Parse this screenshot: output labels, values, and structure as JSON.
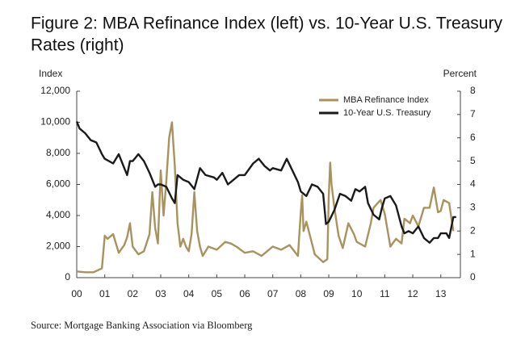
{
  "chart_data": {
    "type": "line",
    "title": [
      "Figure 2: MBA Refinance Index (left) vs. 10-Year U.S. Treasury",
      "Rates (right)"
    ],
    "ylabel": "Index",
    "y2label": "Percent",
    "source": "Source:  Mortgage Banking Association via Bloomberg",
    "xlim": [
      0,
      13.7
    ],
    "xticks": [
      {
        "value": 0,
        "label": "00"
      },
      {
        "value": 1,
        "label": "01"
      },
      {
        "value": 2,
        "label": "02"
      },
      {
        "value": 3,
        "label": "03"
      },
      {
        "value": 4,
        "label": "04"
      },
      {
        "value": 5,
        "label": "05"
      },
      {
        "value": 6,
        "label": "06"
      },
      {
        "value": 7,
        "label": "07"
      },
      {
        "value": 8,
        "label": "08"
      },
      {
        "value": 9,
        "label": "09"
      },
      {
        "value": 10,
        "label": "10"
      },
      {
        "value": 11,
        "label": "11"
      },
      {
        "value": 12,
        "label": "12"
      },
      {
        "value": 13,
        "label": "13"
      }
    ],
    "ylim": [
      0,
      12000
    ],
    "yticks": [
      0,
      {
        "value": 2000,
        "label": "2,000"
      },
      {
        "value": 4000,
        "label": "4,000"
      },
      {
        "value": 6000,
        "label": "6,000"
      },
      {
        "value": 8000,
        "label": "8,000"
      },
      {
        "value": 10000,
        "label": "10,000"
      },
      {
        "value": 12000,
        "label": "12,000"
      }
    ],
    "y2lim": [
      0,
      8
    ],
    "y2ticks": [
      0,
      1,
      2,
      3,
      4,
      5,
      6,
      7,
      8
    ],
    "legend": "top-right",
    "series": [
      {
        "name": "MBA Refinance Index",
        "color": "#a8935f",
        "x": [
          0.0,
          0.3,
          0.6,
          0.9,
          1.0,
          1.1,
          1.3,
          1.5,
          1.7,
          1.8,
          1.9,
          2.0,
          2.2,
          2.4,
          2.6,
          2.7,
          2.8,
          2.9,
          3.0,
          3.1,
          3.2,
          3.3,
          3.4,
          3.5,
          3.6,
          3.7,
          3.8,
          3.9,
          4.0,
          4.1,
          4.2,
          4.3,
          4.4,
          4.5,
          4.7,
          5.0,
          5.3,
          5.5,
          5.7,
          6.0,
          6.3,
          6.6,
          7.0,
          7.3,
          7.6,
          7.9,
          8.0,
          8.05,
          8.1,
          8.2,
          8.5,
          8.8,
          8.95,
          9.0,
          9.05,
          9.1,
          9.2,
          9.35,
          9.5,
          9.7,
          9.9,
          10.0,
          10.3,
          10.5,
          10.6,
          10.75,
          10.85,
          11.0,
          11.2,
          11.4,
          11.6,
          11.7,
          11.9,
          12.0,
          12.2,
          12.4,
          12.6,
          12.75,
          12.9,
          13.0,
          13.1,
          13.3,
          13.45
        ],
        "values": [
          400,
          350,
          350,
          600,
          2700,
          2500,
          2800,
          1600,
          2100,
          2600,
          3500,
          2000,
          1500,
          1700,
          2800,
          5500,
          3200,
          2200,
          6900,
          4000,
          6200,
          9000,
          10000,
          7200,
          3500,
          2000,
          2500,
          2000,
          1700,
          2800,
          5500,
          3000,
          2000,
          1400,
          2000,
          1800,
          2300,
          2200,
          2000,
          1600,
          1700,
          1400,
          2000,
          1800,
          2100,
          1400,
          4200,
          5300,
          3000,
          3600,
          1500,
          1000,
          1200,
          5200,
          7400,
          6000,
          4500,
          2700,
          1900,
          3500,
          2800,
          2300,
          2000,
          3500,
          4500,
          4800,
          5000,
          4100,
          2000,
          2500,
          2200,
          3800,
          3500,
          4000,
          3300,
          4500,
          4500,
          5800,
          4200,
          4300,
          5000,
          4800,
          3000
        ]
      },
      {
        "name": "10-Year U.S. Treasury",
        "color": "#1a1a1a",
        "axis": "y2",
        "x": [
          0.0,
          0.1,
          0.3,
          0.5,
          0.7,
          0.9,
          1.0,
          1.3,
          1.5,
          1.7,
          1.8,
          1.9,
          2.0,
          2.2,
          2.4,
          2.6,
          2.8,
          2.9,
          3.0,
          3.2,
          3.4,
          3.5,
          3.6,
          3.8,
          4.0,
          4.2,
          4.4,
          4.6,
          4.9,
          5.0,
          5.2,
          5.4,
          5.6,
          5.8,
          6.0,
          6.3,
          6.5,
          6.7,
          6.9,
          7.0,
          7.3,
          7.5,
          7.7,
          7.9,
          8.0,
          8.2,
          8.4,
          8.6,
          8.8,
          8.9,
          9.0,
          9.2,
          9.4,
          9.6,
          9.8,
          9.95,
          10.1,
          10.3,
          10.4,
          10.6,
          10.8,
          10.9,
          11.0,
          11.2,
          11.4,
          11.6,
          11.7,
          11.85,
          12.0,
          12.2,
          12.4,
          12.6,
          12.75,
          12.9,
          13.0,
          13.2,
          13.3,
          13.45,
          13.55
        ],
        "values": [
          6.7,
          6.4,
          6.2,
          5.9,
          5.8,
          5.3,
          5.1,
          4.9,
          5.3,
          4.7,
          4.4,
          5.0,
          5.0,
          5.3,
          5.0,
          4.5,
          3.9,
          4.0,
          4.0,
          3.9,
          3.4,
          3.2,
          4.4,
          4.2,
          4.1,
          3.8,
          4.7,
          4.4,
          4.3,
          4.2,
          4.5,
          4.0,
          4.2,
          4.4,
          4.4,
          4.9,
          5.1,
          4.8,
          4.6,
          4.7,
          4.6,
          5.1,
          4.6,
          4.1,
          3.7,
          3.5,
          4.0,
          3.9,
          3.6,
          2.3,
          2.4,
          2.9,
          3.6,
          3.5,
          3.3,
          3.8,
          3.7,
          3.9,
          3.2,
          2.7,
          2.5,
          3.0,
          3.4,
          3.5,
          3.1,
          2.2,
          1.9,
          2.0,
          1.9,
          2.2,
          1.7,
          1.5,
          1.7,
          1.7,
          1.9,
          1.9,
          1.7,
          2.6,
          2.6
        ]
      }
    ]
  }
}
